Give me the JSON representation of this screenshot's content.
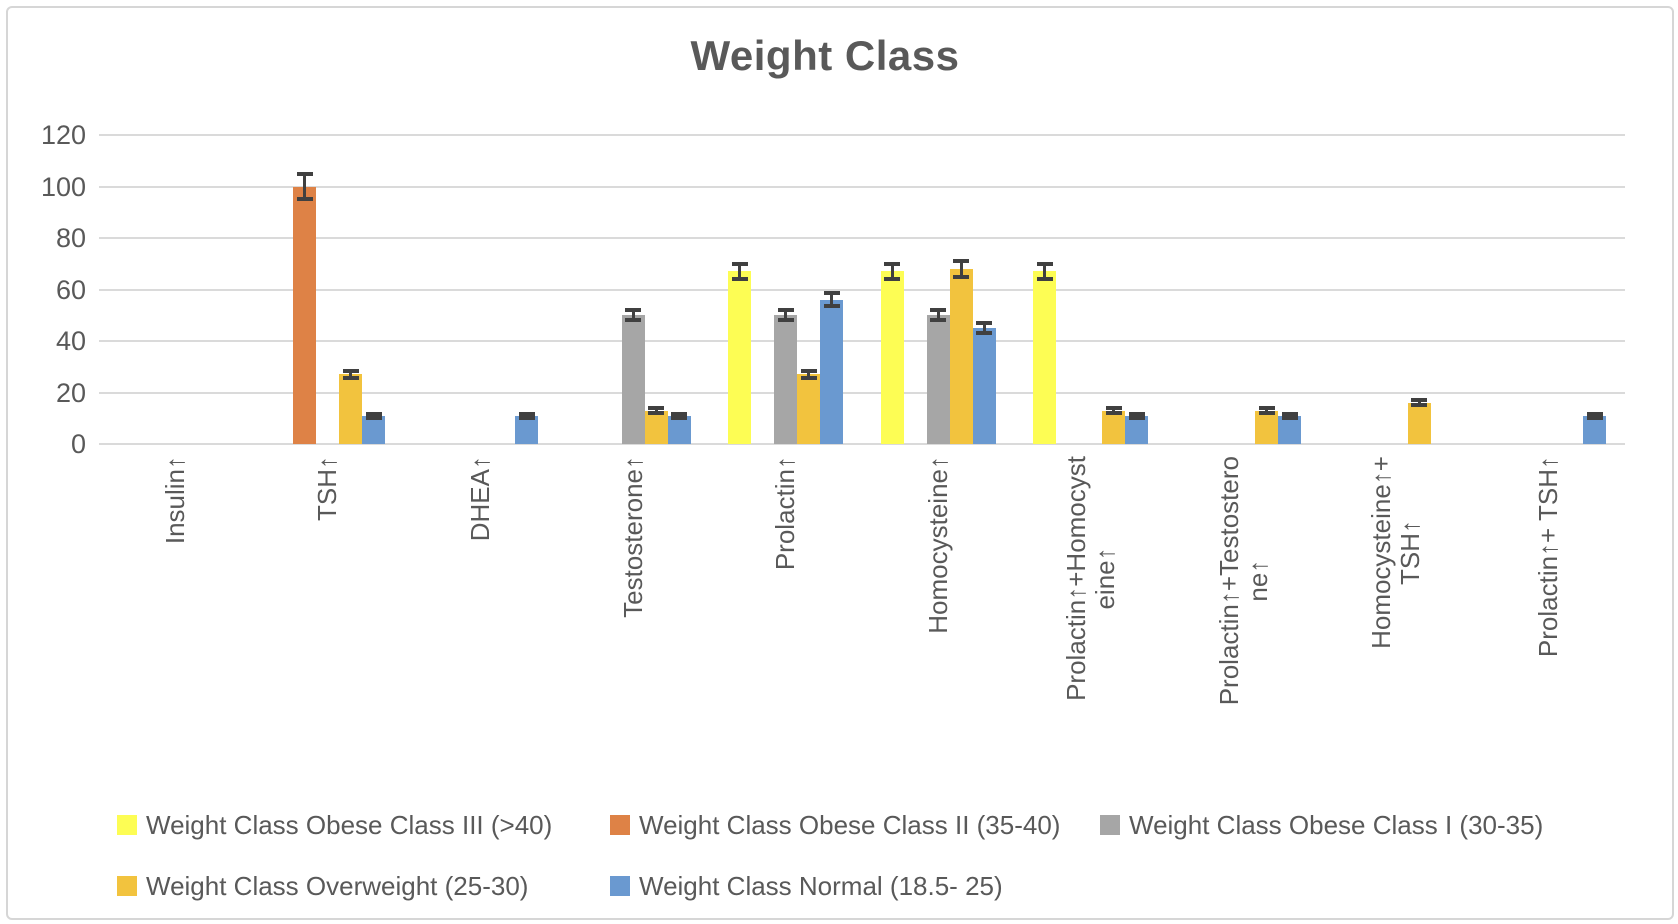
{
  "title": "Weight Class",
  "colors": {
    "text": "#595959",
    "gridline": "#dadada",
    "error_bar": "#404040",
    "frame_border": "#d6d6d6",
    "background": "#ffffff"
  },
  "chart_data": {
    "type": "bar",
    "title": "Weight Class",
    "xlabel": "",
    "ylabel": "",
    "ylim": [
      0,
      120
    ],
    "yticks": [
      0,
      20,
      40,
      60,
      80,
      100,
      120
    ],
    "grid": true,
    "error_bars": true,
    "legend_position": "bottom",
    "categories": [
      "Insulin↑",
      "TSH↑",
      "DHEA↑",
      "Testosterone↑",
      "Prolactin↑",
      "Homocysteine↑",
      "Prolactin↑+Homocysteine↑",
      "Prolactin↑+Testosterone↑",
      "Homocysteine↑+ TSH↑",
      "Prolactin↑+ TSH↑"
    ],
    "category_label_lines": [
      [
        "Insulin↑"
      ],
      [
        "TSH↑"
      ],
      [
        "DHEA↑"
      ],
      [
        "Testosterone↑"
      ],
      [
        "Prolactin↑"
      ],
      [
        "Homocysteine↑"
      ],
      [
        "Prolactin↑+Homocyst",
        "eine↑"
      ],
      [
        "Prolactin↑+Testostero",
        "ne↑"
      ],
      [
        "Homocysteine↑+",
        "TSH↑"
      ],
      [
        "Prolactin↑+ TSH↑"
      ]
    ],
    "series": [
      {
        "name": "Weight Class Obese Class III (>40)",
        "color": "#fdfd54",
        "values": [
          0,
          0,
          0,
          0,
          67,
          67,
          67,
          0,
          0,
          0
        ],
        "errors": [
          0,
          0,
          0,
          0,
          3,
          3,
          3,
          0,
          0,
          0
        ]
      },
      {
        "name": "Weight Class Obese Class II (35-40)",
        "color": "#de8246",
        "values": [
          0,
          100,
          0,
          0,
          0,
          0,
          0,
          0,
          0,
          0
        ],
        "errors": [
          0,
          5,
          0,
          0,
          0,
          0,
          0,
          0,
          0,
          0
        ]
      },
      {
        "name": "Weight Class Obese Class I (30-35)",
        "color": "#a6a6a6",
        "values": [
          0,
          0,
          0,
          50,
          50,
          50,
          0,
          0,
          0,
          0
        ],
        "errors": [
          0,
          0,
          0,
          2,
          2,
          2,
          0,
          0,
          0,
          0
        ]
      },
      {
        "name": "Weight Class Overweight (25-30)",
        "color": "#f2c33e",
        "values": [
          0,
          27,
          0,
          13,
          27,
          68,
          13,
          13,
          16,
          0
        ],
        "errors": [
          0,
          1.5,
          0,
          1,
          1.5,
          3,
          1,
          1,
          1,
          0
        ]
      },
      {
        "name": "Weight Class Normal (18.5- 25)",
        "color": "#6a99d0",
        "values": [
          0,
          11,
          11,
          11,
          56,
          45,
          11,
          11,
          0,
          11
        ],
        "errors": [
          0,
          0.8,
          0.8,
          0.8,
          2.5,
          2,
          0.8,
          0.8,
          0,
          0.8
        ]
      }
    ],
    "legend_rows": [
      [
        0,
        1,
        2
      ],
      [
        3,
        4
      ]
    ]
  }
}
